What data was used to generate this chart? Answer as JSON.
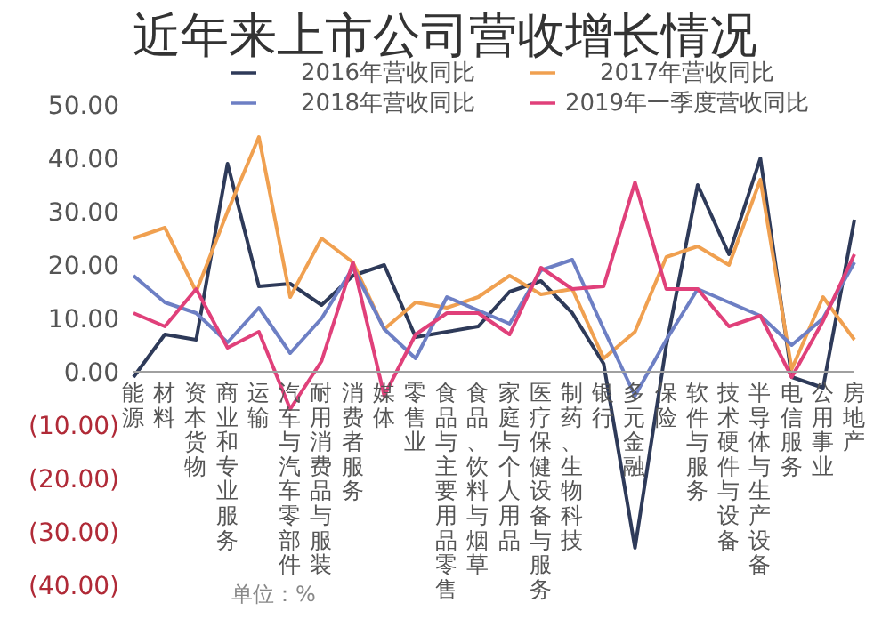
{
  "chart_data": {
    "type": "line",
    "title": "近年来上市公司营收增长情况",
    "annotations": [
      "单位：%"
    ],
    "categories": [
      "能源",
      "材料",
      "资本货物",
      "商业和专业服务",
      "运输",
      "汽车与汽车零部件",
      "耐用消费品与服装",
      "消费者服务",
      "媒体",
      "零售业",
      "食品与主要用品零售",
      "食品、饮料与烟草",
      "家庭与个人用品",
      "医疗保健设备与服务",
      "制药、生物科技",
      "银行",
      "多元金融",
      "保险",
      "软件与服务",
      "技术硬件与设备",
      "半导体与生产设备",
      "电信服务",
      "公用事业",
      "房地产"
    ],
    "series": [
      {
        "name": "2016年营收同比",
        "color": "#2e3a59",
        "values": [
          -1,
          7,
          6,
          39,
          16,
          16.5,
          12.5,
          18,
          20,
          6.5,
          7.5,
          8.5,
          15,
          17,
          11,
          1.5,
          -33,
          5,
          35,
          22,
          40,
          -1,
          -3,
          28.5
        ]
      },
      {
        "name": "2017年营收同比",
        "color": "#f0a050",
        "values": [
          25,
          27,
          15,
          30,
          44,
          14,
          25,
          20.5,
          8,
          13,
          12,
          14,
          18,
          14.5,
          15.5,
          2.5,
          7.5,
          21.5,
          23.5,
          20,
          36,
          0.5,
          14,
          6
        ]
      },
      {
        "name": "2018年营收同比",
        "color": "#6d7fc4",
        "values": [
          18,
          13,
          11,
          5.5,
          12,
          3.5,
          10,
          19.5,
          8,
          2.5,
          14,
          11.5,
          9,
          19,
          21,
          8,
          -4.5,
          6,
          15.5,
          13,
          10.5,
          5,
          10,
          20.5
        ]
      },
      {
        "name": "2019年一季度营收同比",
        "color": "#e0407a",
        "values": [
          11,
          8.5,
          15.5,
          4.5,
          7.5,
          -7,
          2,
          20.5,
          -4.5,
          7,
          11,
          11,
          7,
          19.5,
          15.5,
          16,
          35.5,
          15.5,
          15.5,
          8.5,
          10.5,
          -1,
          9.5,
          22
        ]
      }
    ],
    "ylim": [
      -40,
      50
    ],
    "yticks": [
      {
        "value": -40,
        "label": "(40.00)"
      },
      {
        "value": -30,
        "label": "(30.00)"
      },
      {
        "value": -20,
        "label": "(20.00)"
      },
      {
        "value": -10,
        "label": "(10.00)"
      },
      {
        "value": 0,
        "label": "0.00"
      },
      {
        "value": 10,
        "label": "10.00"
      },
      {
        "value": 20,
        "label": "20.00"
      },
      {
        "value": 30,
        "label": "30.00"
      },
      {
        "value": 40,
        "label": "40.00"
      },
      {
        "value": 50,
        "label": "50.00"
      }
    ],
    "grid": false,
    "legend": "top",
    "marker": "none",
    "line_style": "solid"
  }
}
